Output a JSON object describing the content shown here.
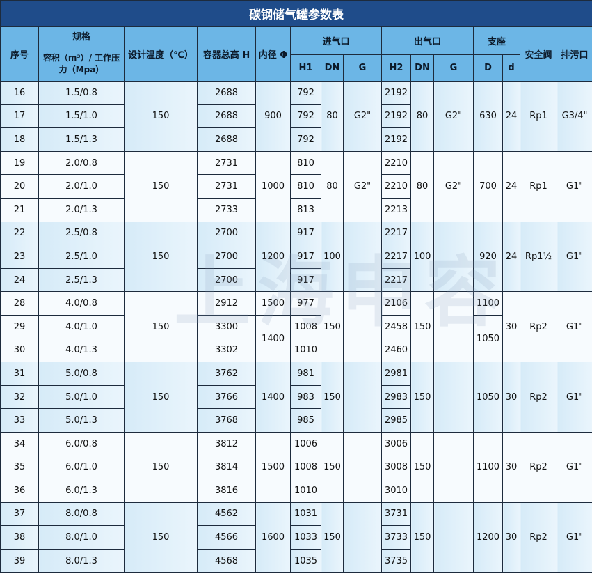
{
  "title": "碳钢储气罐参数表",
  "watermark": "上海申容",
  "headers": {
    "seq": "序号",
    "spec": "规格",
    "spec_sub": "容积（m³）/ 工作压力（Mpa）",
    "temp": "设计温度（℃）",
    "height": "容器总高 H",
    "dia": "内径 Φ",
    "inlet": "进气口",
    "outlet": "出气口",
    "support": "支座",
    "valve": "安全阀",
    "drain": "排污口",
    "h1": "H1",
    "dn": "DN",
    "g": "G",
    "h2": "H2",
    "D": "D",
    "d": "d"
  },
  "groups": [
    {
      "rows": [
        {
          "seq": "16",
          "spec": "1.5/0.8",
          "h": "2688",
          "h1": "792",
          "h2": "2192"
        },
        {
          "seq": "17",
          "spec": "1.5/1.0",
          "h": "2688",
          "h1": "792",
          "h2": "2192"
        },
        {
          "seq": "18",
          "spec": "1.5/1.3",
          "h": "2688",
          "h1": "792",
          "h2": "2192"
        }
      ],
      "temp": "150",
      "dia": [
        {
          "v": "900",
          "span": 3
        }
      ],
      "dn_in": "80",
      "g_in": "G2\"",
      "dn_out": "80",
      "g_out": "G2\"",
      "D": [
        {
          "v": "630",
          "span": 3
        }
      ],
      "d": "24",
      "valve": "Rp1",
      "drain": "G3/4\""
    },
    {
      "rows": [
        {
          "seq": "19",
          "spec": "2.0/0.8",
          "h": "2731",
          "h1": "810",
          "h2": "2210"
        },
        {
          "seq": "20",
          "spec": "2.0/1.0",
          "h": "2731",
          "h1": "810",
          "h2": "2210"
        },
        {
          "seq": "21",
          "spec": "2.0/1.3",
          "h": "2733",
          "h1": "813",
          "h2": "2213"
        }
      ],
      "temp": "150",
      "dia": [
        {
          "v": "1000",
          "span": 3
        }
      ],
      "dn_in": "80",
      "g_in": "G2\"",
      "dn_out": "80",
      "g_out": "G2\"",
      "D": [
        {
          "v": "700",
          "span": 3
        }
      ],
      "d": "24",
      "valve": "Rp1",
      "drain": "G1\""
    },
    {
      "rows": [
        {
          "seq": "22",
          "spec": "2.5/0.8",
          "h": "2700",
          "h1": "917",
          "h2": "2217"
        },
        {
          "seq": "23",
          "spec": "2.5/1.0",
          "h": "2700",
          "h1": "917",
          "h2": "2217"
        },
        {
          "seq": "24",
          "spec": "2.5/1.3",
          "h": "2700",
          "h1": "917",
          "h2": "2217"
        }
      ],
      "temp": "150",
      "dia": [
        {
          "v": "1200",
          "span": 3
        }
      ],
      "dn_in": "100",
      "g_in": "",
      "dn_out": "100",
      "g_out": "",
      "D": [
        {
          "v": "920",
          "span": 3
        }
      ],
      "d": "24",
      "valve": "Rp1½",
      "drain": "G1\""
    },
    {
      "rows": [
        {
          "seq": "28",
          "spec": "4.0/0.8",
          "h": "2912",
          "h1": "977",
          "h2": "2106"
        },
        {
          "seq": "29",
          "spec": "4.0/1.0",
          "h": "3300",
          "h1": "1008",
          "h2": "2458"
        },
        {
          "seq": "30",
          "spec": "4.0/1.3",
          "h": "3302",
          "h1": "1010",
          "h2": "2460"
        }
      ],
      "temp": "150",
      "dia": [
        {
          "v": "1500",
          "span": 1
        },
        {
          "v": "1400",
          "span": 2
        }
      ],
      "dn_in": "150",
      "g_in": "",
      "dn_out": "150",
      "g_out": "",
      "D": [
        {
          "v": "1100",
          "span": 1
        },
        {
          "v": "1050",
          "span": 2
        }
      ],
      "d": "30",
      "valve": "Rp2",
      "drain": "G1\""
    },
    {
      "rows": [
        {
          "seq": "31",
          "spec": "5.0/0.8",
          "h": "3762",
          "h1": "981",
          "h2": "2981"
        },
        {
          "seq": "32",
          "spec": "5.0/1.0",
          "h": "3766",
          "h1": "983",
          "h2": "2983"
        },
        {
          "seq": "33",
          "spec": "5.0/1.3",
          "h": "3768",
          "h1": "985",
          "h2": "2985"
        }
      ],
      "temp": "150",
      "dia": [
        {
          "v": "1400",
          "span": 3
        }
      ],
      "dn_in": "150",
      "g_in": "",
      "dn_out": "150",
      "g_out": "",
      "D": [
        {
          "v": "1050",
          "span": 3
        }
      ],
      "d": "30",
      "valve": "Rp2",
      "drain": "G1\""
    },
    {
      "rows": [
        {
          "seq": "34",
          "spec": "6.0/0.8",
          "h": "3812",
          "h1": "1006",
          "h2": "3006"
        },
        {
          "seq": "35",
          "spec": "6.0/1.0",
          "h": "3814",
          "h1": "1008",
          "h2": "3008"
        },
        {
          "seq": "36",
          "spec": "6.0/1.3",
          "h": "3816",
          "h1": "1010",
          "h2": "3010"
        }
      ],
      "temp": "150",
      "dia": [
        {
          "v": "1500",
          "span": 3
        }
      ],
      "dn_in": "150",
      "g_in": "",
      "dn_out": "150",
      "g_out": "",
      "D": [
        {
          "v": "1100",
          "span": 3
        }
      ],
      "d": "30",
      "valve": "Rp2",
      "drain": "G1\""
    },
    {
      "rows": [
        {
          "seq": "37",
          "spec": "8.0/0.8",
          "h": "4562",
          "h1": "1031",
          "h2": "3731"
        },
        {
          "seq": "38",
          "spec": "8.0/1.0",
          "h": "4566",
          "h1": "1033",
          "h2": "3733"
        },
        {
          "seq": "39",
          "spec": "8.0/1.3",
          "h": "4568",
          "h1": "1035",
          "h2": "3735"
        }
      ],
      "temp": "150",
      "dia": [
        {
          "v": "1600",
          "span": 3
        }
      ],
      "dn_in": "150",
      "g_in": "",
      "dn_out": "150",
      "g_out": "",
      "D": [
        {
          "v": "1200",
          "span": 3
        }
      ],
      "d": "30",
      "valve": "Rp2",
      "drain": "G1\""
    }
  ]
}
